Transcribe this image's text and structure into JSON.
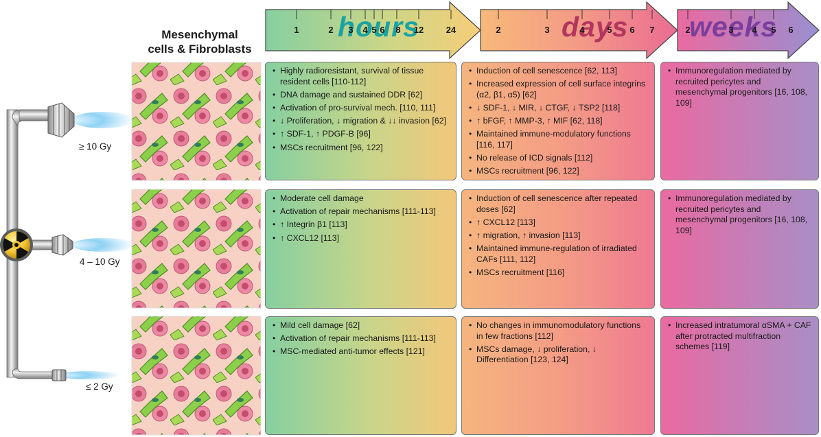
{
  "header": {
    "title_line1": "Mesenchymal",
    "title_line2": "cells & Fibroblasts"
  },
  "timeline": {
    "hours_label": "hours",
    "days_label": "days",
    "weeks_label": "weeks",
    "hours_ticks": [
      "1",
      "2",
      "3",
      "4",
      "5",
      "6",
      "8",
      "12",
      "24"
    ],
    "days_ticks": [
      "2",
      "3",
      "4",
      "5",
      "6",
      "7"
    ],
    "weeks_ticks": [
      "2",
      "3",
      "4",
      "5",
      "6"
    ],
    "colors": {
      "hours_start": "#86cfa0",
      "hours_end": "#f6cd78",
      "days_start": "#f7b97a",
      "days_end": "#ea6c93",
      "weeks_start": "#ea6aa0",
      "weeks_end": "#9a8fd0"
    }
  },
  "doses": {
    "high": "≥ 10 Gy",
    "mid": "4 – 10 Gy",
    "low": "≤ 2 Gy"
  },
  "rows": [
    {
      "hours": [
        "Highly radioresistant, survival of tissue resident cells [110-112]",
        "DNA damage and sustained DDR [62]",
        "Activation of pro-survival mech. [110, 111]",
        "↓ Proliferation, ↓ migration & ↓↓ invasion [62]",
        "↑ SDF-1, ↑ PDGF-B [96]",
        "MSCs recruitment [96, 122]"
      ],
      "days": [
        "Induction of cell senescence [62, 113]",
        "Increased expression of cell surface integrins (α2, β1, α5) [62]",
        "↓ SDF-1, ↓ MIR, ↓ CTGF, ↓ TSP2 [118]",
        "↑ bFGF, ↑ MMP-3, ↑ MIF [62, 118]",
        "Maintained immune-modulatory functions [116, 117]",
        "No release of ICD signals [112]",
        "MSCs recruitment [96, 122]"
      ],
      "weeks": [
        "Immunoregulation mediated by recruited pericytes and mesenchymal progenitors [16, 108, 109]"
      ]
    },
    {
      "hours": [
        "Moderate cell damage",
        "Activation of repair mechanisms [111-113]",
        "↑ Integrin β1 [113]",
        "↑ CXCL12 [113]"
      ],
      "days": [
        "Induction of cell senescence after repeated doses [62]",
        "↑ CXCL12 [113]",
        "↑ migration, ↑ invasion [113]",
        "Maintained immune-regulation of irradiated CAFs [111, 112]",
        "MSCs recruitment [116]"
      ],
      "weeks": [
        "Immunoregulation mediated by recruited pericytes and mesenchymal progenitors [16, 108, 109]"
      ]
    },
    {
      "hours": [
        "Mild cell damage [62]",
        "Activation of repair mechanisms [111-113]",
        "MSC-mediated anti-tumor effects [121]"
      ],
      "days": [
        "No changes in immunomodulatory functions in few fractions [112]",
        "MSCs damage, ↓ proliferation, ↓ Differentiation [123, 124]"
      ],
      "weeks": [
        "Increased intratumoral αSMA + CAF after protracted multifraction schemes [119]"
      ]
    }
  ]
}
